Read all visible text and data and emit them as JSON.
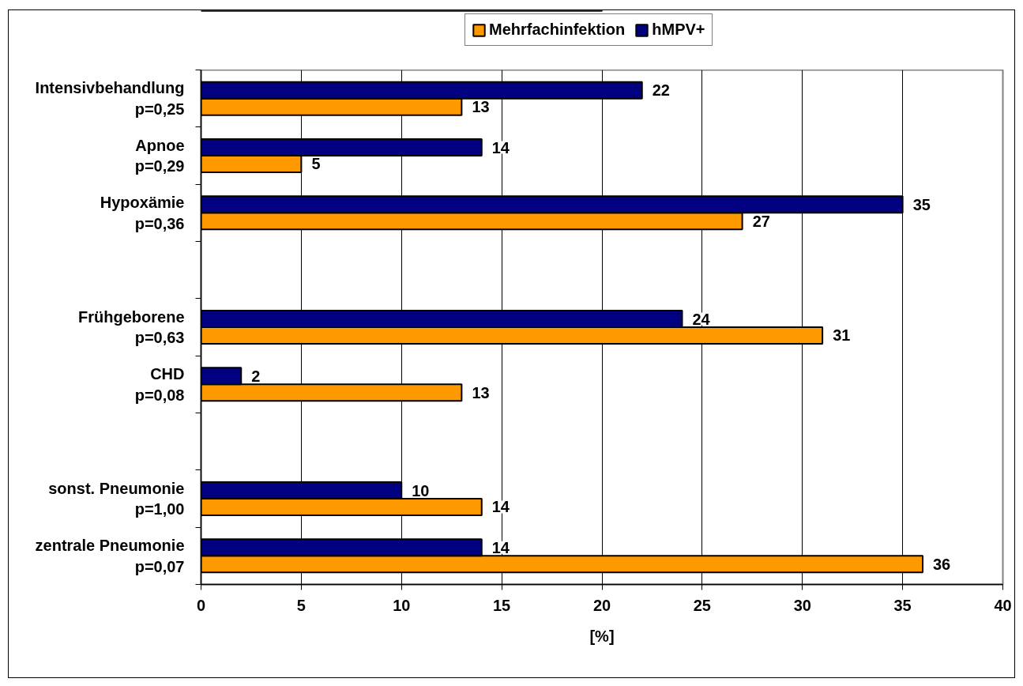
{
  "chart_data": {
    "type": "bar",
    "orientation": "horizontal",
    "categories": [
      "Intensivbehandlung\np=0,25",
      "Apnoe\np=0,29",
      "Hypoxämie\np=0,36",
      null,
      "Frühgeborene\np=0,63",
      "CHD\np=0,08",
      null,
      "sonst. Pneumonie\np=1,00",
      "zentrale Pneumonie\np=0,07"
    ],
    "series": [
      {
        "name": "Mehrfachinfektion",
        "color": "#ff9900",
        "values": [
          13,
          5,
          27,
          null,
          31,
          13,
          null,
          14,
          36
        ]
      },
      {
        "name": "hMPV+",
        "color": "#000080",
        "values": [
          22,
          14,
          35,
          null,
          24,
          2,
          null,
          10,
          14
        ]
      }
    ],
    "xlim": [
      0,
      40
    ],
    "xticks": [
      0,
      5,
      10,
      15,
      20,
      25,
      30,
      35,
      40
    ],
    "xlabel": "[%]",
    "grid": "x",
    "legend": "top",
    "data_labels": true
  }
}
